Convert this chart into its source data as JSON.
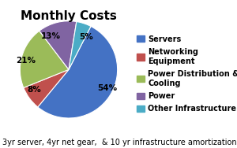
{
  "title": "Monthly Costs",
  "subtitle": "3yr server, 4yr net gear,  & 10 yr infrastructure amortization",
  "slices": [
    54,
    8,
    21,
    13,
    5
  ],
  "labels": [
    "54%",
    "8%",
    "21%",
    "13%",
    "5%"
  ],
  "colors": [
    "#4472C4",
    "#C0504D",
    "#9BBB59",
    "#8064A2",
    "#4BACC6"
  ],
  "legend_labels": [
    "Servers",
    "Networking\nEquipment",
    "Power Distribution &\nCooling",
    "Power",
    "Other Infrastructure"
  ],
  "startangle": 63,
  "counterclock": false,
  "title_fontsize": 11,
  "label_fontsize": 7.5,
  "legend_fontsize": 7,
  "subtitle_fontsize": 7
}
